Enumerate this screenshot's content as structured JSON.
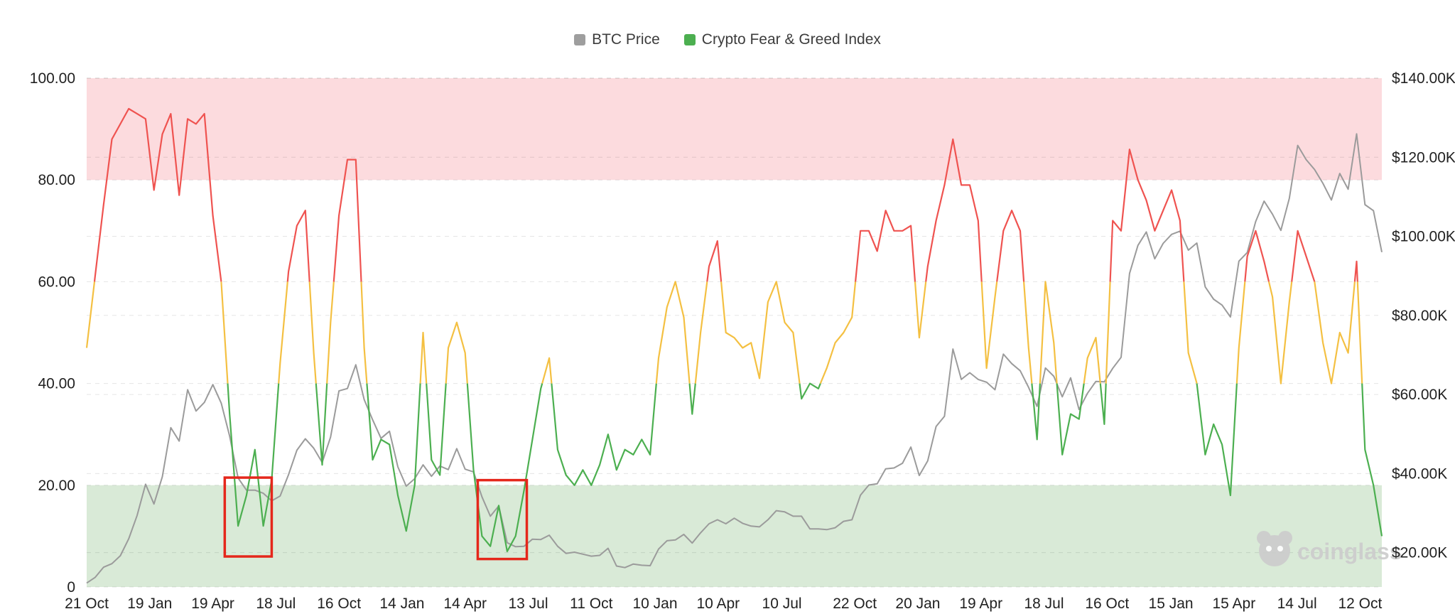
{
  "page": {
    "background": "#ffffff"
  },
  "legend": {
    "items": [
      {
        "label": "BTC Price",
        "color": "#9e9e9e"
      },
      {
        "label": "Crypto Fear & Greed Index",
        "color": "#4caf50"
      }
    ]
  },
  "watermark": {
    "text": "coinglass",
    "color": "#cccccc"
  },
  "chart_data": {
    "type": "line",
    "title": "",
    "grid": "dashed",
    "legend_position": "top-center",
    "x_start_date": "2020-10-21",
    "x_step_days": 12,
    "left_axis": {
      "range": [
        0,
        100
      ],
      "ticks": [
        {
          "label": "0",
          "value": 0
        },
        {
          "label": "20.00",
          "value": 20
        },
        {
          "label": "40.00",
          "value": 40
        },
        {
          "label": "60.00",
          "value": 60
        },
        {
          "label": "80.00",
          "value": 80
        },
        {
          "label": "100.00",
          "value": 100
        }
      ]
    },
    "right_axis": {
      "range": [
        11.3,
        140
      ],
      "ticks": [
        {
          "label": "$20.00K",
          "value": 20
        },
        {
          "label": "$40.00K",
          "value": 40
        },
        {
          "label": "$60.00K",
          "value": 60
        },
        {
          "label": "$80.00K",
          "value": 80
        },
        {
          "label": "$100.00K",
          "value": 100
        },
        {
          "label": "$120.00K",
          "value": 120
        },
        {
          "label": "$140.00K",
          "value": 140
        }
      ]
    },
    "x_labels": [
      {
        "text": "21 Oct",
        "date": "2020-10-21"
      },
      {
        "text": "19 Jan",
        "date": "2021-01-19"
      },
      {
        "text": "19 Apr",
        "date": "2021-04-19"
      },
      {
        "text": "18 Jul",
        "date": "2021-07-18"
      },
      {
        "text": "16 Oct",
        "date": "2021-10-16"
      },
      {
        "text": "14 Jan",
        "date": "2022-01-14"
      },
      {
        "text": "14 Apr",
        "date": "2022-04-14"
      },
      {
        "text": "13 Jul",
        "date": "2022-07-13"
      },
      {
        "text": "11 Oct",
        "date": "2022-10-11"
      },
      {
        "text": "10 Jan",
        "date": "2023-01-10"
      },
      {
        "text": "10 Apr",
        "date": "2023-04-10"
      },
      {
        "text": "10 Jul",
        "date": "2023-07-10"
      },
      {
        "text": "22 Oct",
        "date": "2023-10-22"
      },
      {
        "text": "20 Jan",
        "date": "2024-01-20"
      },
      {
        "text": "19 Apr",
        "date": "2024-04-19"
      },
      {
        "text": "18 Jul",
        "date": "2024-07-18"
      },
      {
        "text": "16 Oct",
        "date": "2024-10-16"
      },
      {
        "text": "15 Jan",
        "date": "2025-01-15"
      },
      {
        "text": "15 Apr",
        "date": "2025-04-15"
      },
      {
        "text": "14 Jul",
        "date": "2025-07-14"
      },
      {
        "text": "12 Oct",
        "date": "2025-10-12"
      }
    ],
    "bands": [
      {
        "name": "extreme-greed-band",
        "axis": "left",
        "from": 80,
        "to": 100,
        "color": "#fcdbde"
      },
      {
        "name": "extreme-fear-band",
        "axis": "left",
        "from": 0,
        "to": 20,
        "color": "#d9ead7"
      }
    ],
    "series": [
      {
        "name": "Crypto Fear & Greed Index",
        "axis": "left",
        "color_rules": [
          {
            "min": 60,
            "color": "#ef5350"
          },
          {
            "min": 40,
            "color": "#f4c042"
          },
          {
            "min": 0,
            "color": "#4caf50"
          }
        ],
        "values": [
          47,
          61,
          75,
          88,
          91,
          94,
          93,
          92,
          78,
          89,
          93,
          77,
          92,
          91,
          93,
          73,
          60,
          34,
          12,
          18,
          27,
          12,
          21,
          44,
          62,
          71,
          74,
          46,
          24,
          52,
          73,
          84,
          84,
          47,
          25,
          29,
          28,
          18,
          11,
          20,
          50,
          25,
          22,
          47,
          52,
          46,
          23,
          10,
          8,
          16,
          7,
          10,
          19,
          29,
          39,
          45,
          27,
          22,
          20,
          23,
          20,
          24,
          30,
          23,
          27,
          26,
          29,
          26,
          45,
          55,
          60,
          53,
          34,
          50,
          63,
          68,
          50,
          49,
          47,
          48,
          41,
          56,
          60,
          52,
          50,
          37,
          40,
          39,
          43,
          48,
          50,
          53,
          70,
          70,
          66,
          74,
          70,
          70,
          71,
          49,
          63,
          72,
          79,
          88,
          79,
          79,
          72,
          43,
          57,
          70,
          74,
          70,
          47,
          29,
          60,
          48,
          26,
          34,
          33,
          45,
          49,
          32,
          72,
          70,
          86,
          80,
          76,
          70,
          74,
          78,
          72,
          46,
          40,
          26,
          32,
          28,
          18,
          47,
          65,
          70,
          64,
          57,
          40,
          56,
          70,
          65,
          60,
          48,
          40,
          50,
          46,
          64,
          27,
          20,
          10
        ]
      },
      {
        "name": "BTC Price",
        "axis": "right",
        "color": "#9b9b9b",
        "values": [
          12.3,
          13.7,
          16.3,
          17.2,
          19.2,
          23.5,
          29.4,
          37.3,
          32.3,
          39.2,
          51.6,
          48.2,
          61.2,
          55.8,
          58.0,
          62.5,
          57.8,
          49.5,
          38.9,
          35.8,
          35.8,
          35.0,
          33.1,
          34.3,
          39.7,
          45.9,
          48.8,
          46.4,
          42.8,
          49.2,
          60.9,
          61.5,
          67.5,
          58.7,
          53.6,
          48.9,
          50.7,
          41.7,
          36.8,
          38.7,
          42.2,
          39.3,
          41.9,
          41.0,
          46.3,
          41.1,
          40.4,
          34.1,
          29.2,
          31.8,
          22.5,
          21.5,
          21.6,
          23.4,
          23.3,
          24.4,
          21.6,
          19.8,
          20.1,
          19.6,
          19.1,
          19.3,
          21.1,
          16.6,
          16.2,
          17.1,
          16.8,
          16.7,
          20.9,
          23.0,
          23.2,
          24.6,
          22.4,
          25.0,
          27.3,
          28.3,
          27.3,
          28.7,
          27.4,
          26.7,
          26.5,
          28.3,
          30.6,
          30.3,
          29.2,
          29.2,
          26.0,
          26.0,
          25.8,
          26.3,
          27.9,
          28.3,
          34.5,
          37.1,
          37.4,
          41.2,
          41.4,
          42.6,
          46.7,
          39.5,
          43.2,
          51.9,
          54.5,
          71.5,
          63.8,
          65.5,
          63.8,
          63.1,
          61.2,
          70.2,
          67.8,
          66.0,
          61.8,
          57.0,
          66.7,
          64.6,
          59.4,
          64.2,
          56.2,
          60.3,
          63.3,
          63.2,
          66.6,
          69.4,
          90.6,
          97.7,
          101.1,
          94.3,
          98.2,
          100.5,
          101.3,
          96.5,
          98.3,
          87.2,
          84.1,
          82.6,
          79.6,
          93.7,
          95.9,
          103.7,
          108.9,
          105.6,
          101.5,
          109.6,
          123.0,
          119.4,
          116.9,
          113.4,
          109.2,
          115.9,
          111.9,
          125.9,
          108.0,
          106.5,
          96.0
        ]
      }
    ],
    "annotations": [
      {
        "type": "rect",
        "name": "extreme-fear-box-2021",
        "date_from": "2021-05-06",
        "date_to": "2021-07-12",
        "value_from": 6,
        "value_to": 21.5,
        "stroke": "#e5271b"
      },
      {
        "type": "rect",
        "name": "extreme-fear-box-2022",
        "date_from": "2022-05-02",
        "date_to": "2022-07-11",
        "value_from": 5.5,
        "value_to": 21,
        "stroke": "#e5271b"
      }
    ]
  }
}
